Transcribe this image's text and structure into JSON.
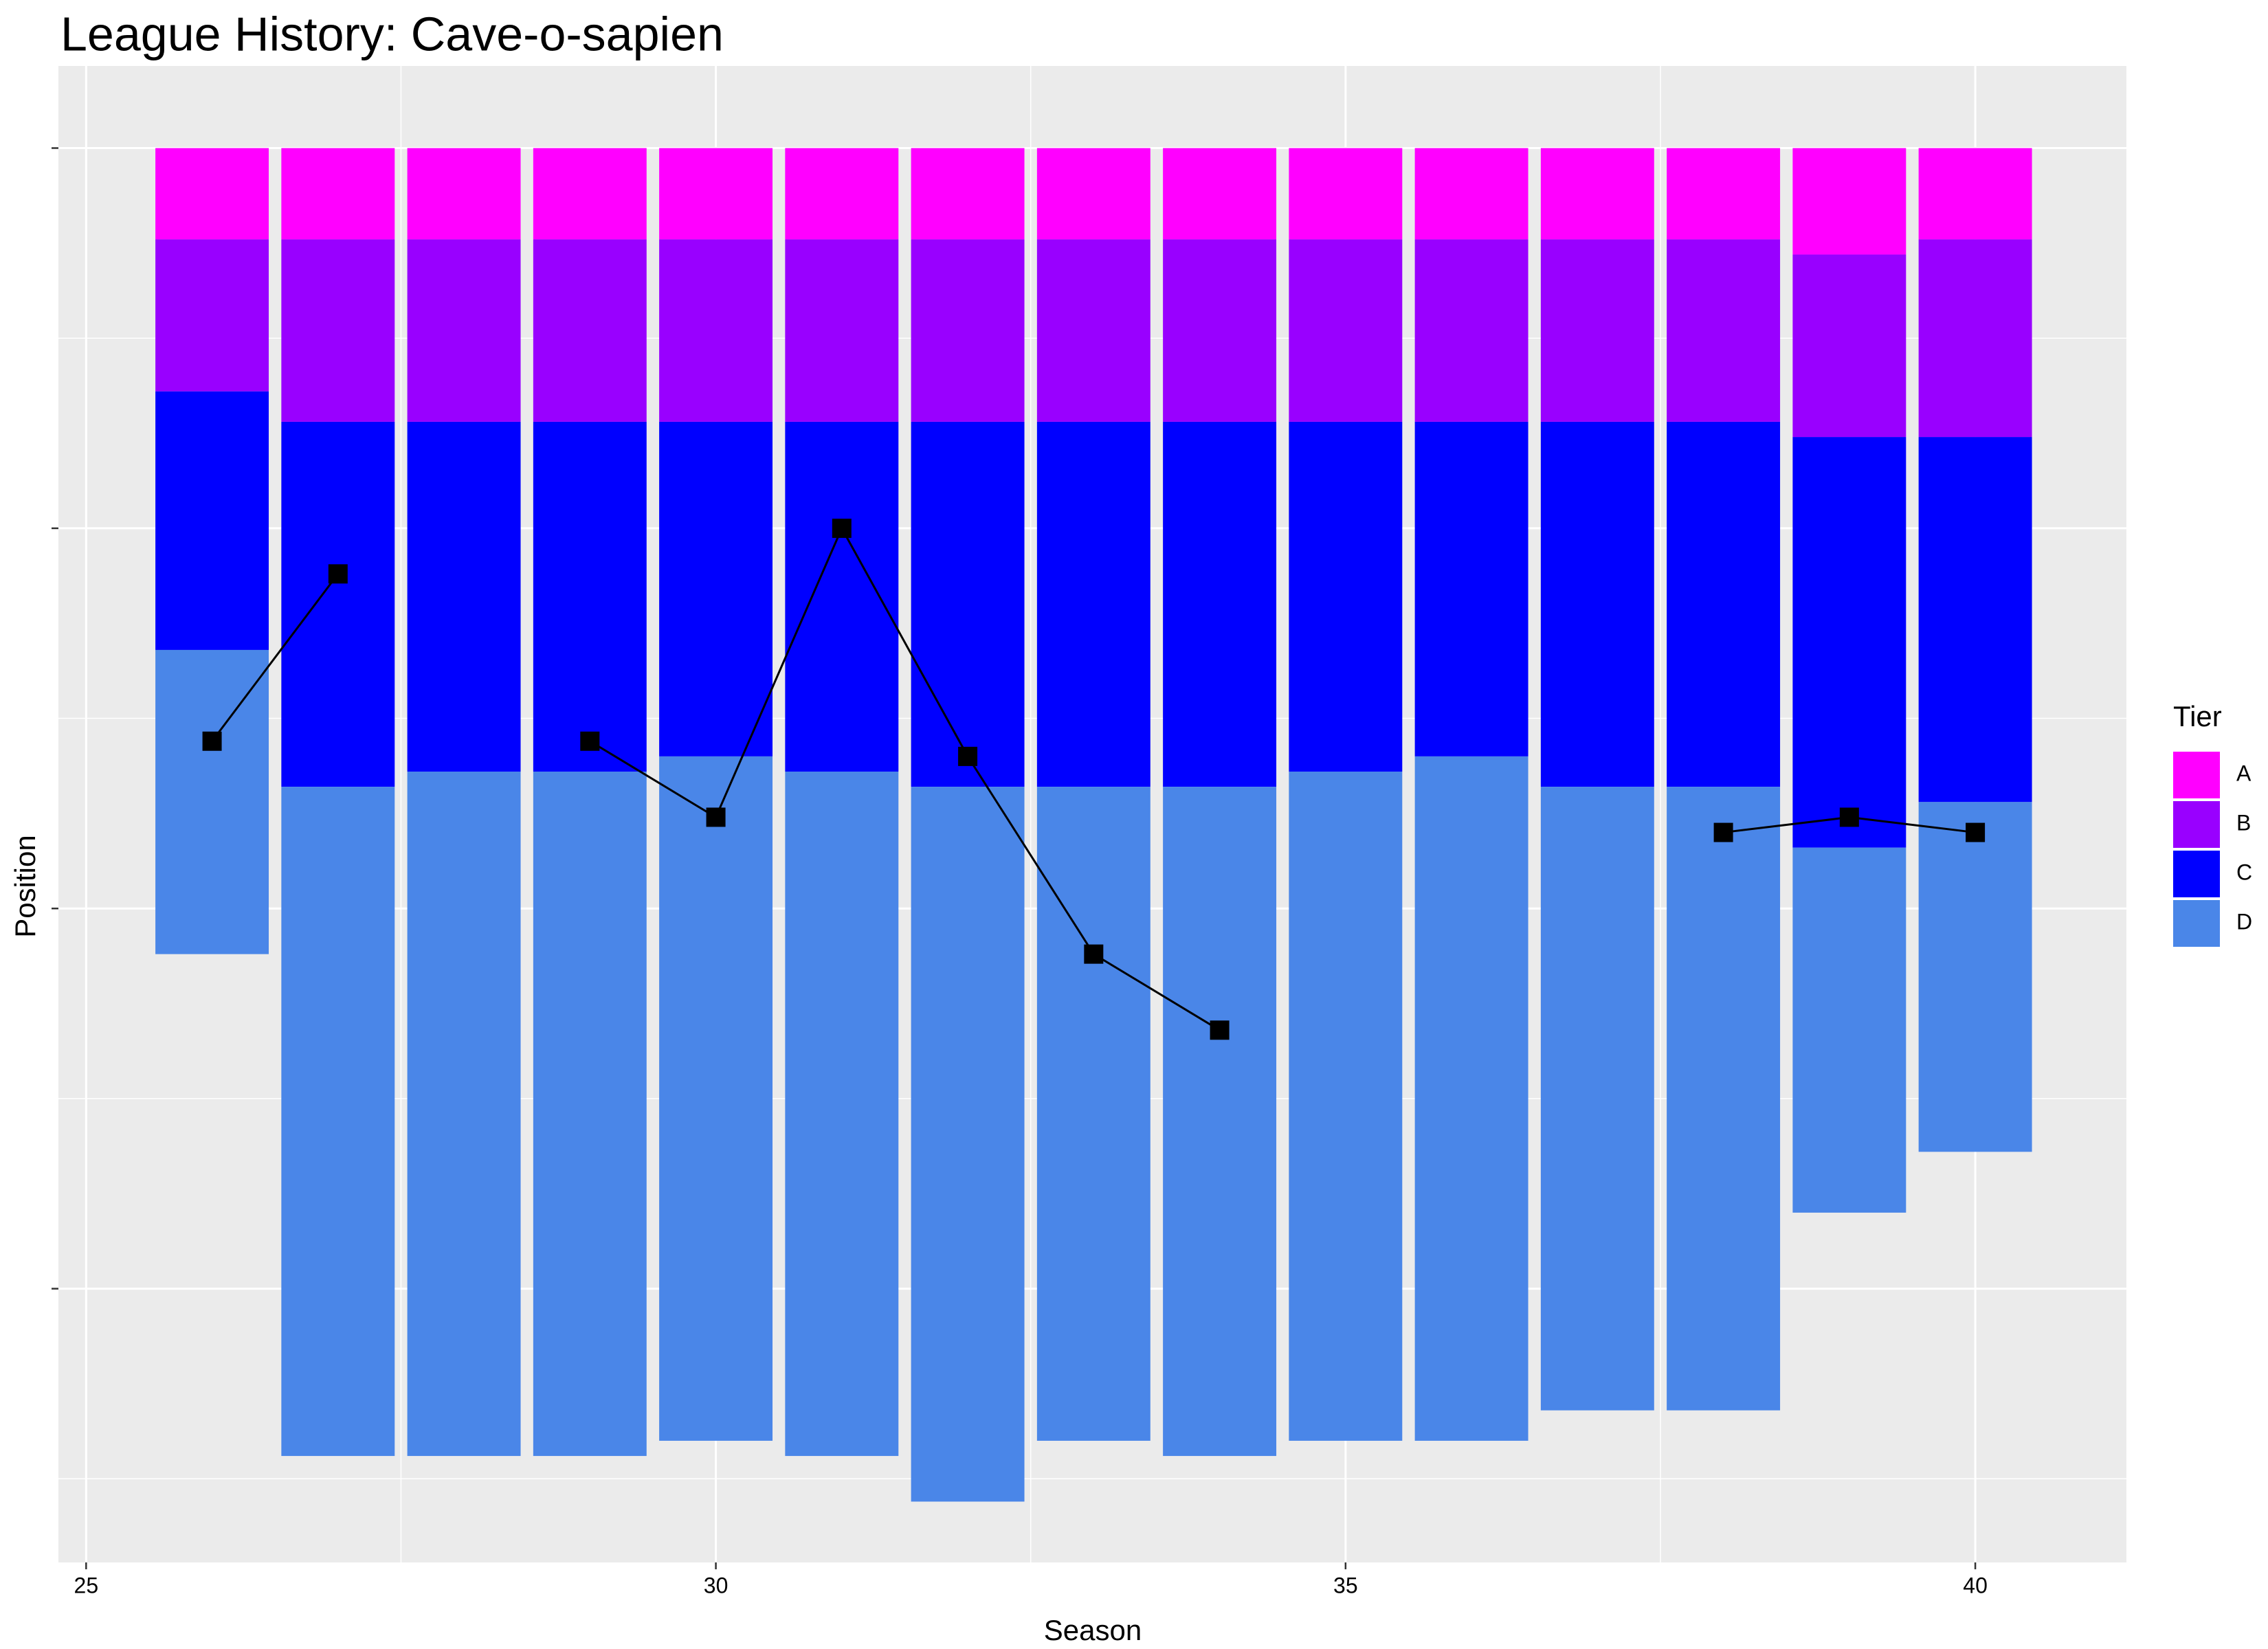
{
  "chart_data": {
    "type": "stacked-bar-line",
    "title": "League History: Cave-o-sapien",
    "x_label": "Season",
    "y_label": "Position",
    "legend_title": "Tier",
    "x": [
      26,
      27,
      28,
      29,
      30,
      31,
      32,
      33,
      34,
      35,
      36,
      37,
      38,
      39,
      40
    ],
    "series": [
      {
        "name": "A",
        "color": "#ff00ff",
        "values": [
          6,
          6,
          6,
          6,
          6,
          6,
          6,
          6,
          6,
          6,
          6,
          6,
          6,
          7,
          6
        ]
      },
      {
        "name": "B",
        "color": "#9900ff",
        "values": [
          10,
          12,
          12,
          12,
          12,
          12,
          12,
          12,
          12,
          12,
          12,
          12,
          12,
          12,
          13
        ]
      },
      {
        "name": "C",
        "color": "#0000ff",
        "values": [
          17,
          24,
          23,
          23,
          22,
          23,
          24,
          24,
          24,
          23,
          22,
          24,
          24,
          27,
          24
        ]
      },
      {
        "name": "D",
        "color": "#4a86e8",
        "values": [
          20,
          44,
          45,
          45,
          45,
          45,
          47,
          43,
          44,
          44,
          45,
          41,
          41,
          24,
          23
        ]
      }
    ],
    "line": {
      "color": "#000000",
      "values": [
        39,
        28,
        null,
        39,
        44,
        25,
        40,
        53,
        58,
        null,
        null,
        null,
        45,
        44,
        45
      ]
    },
    "xlim": [
      24.78,
      41.2
    ],
    "xticks": [
      25,
      30,
      35,
      40
    ],
    "ylim": [
      93,
      -5.4
    ],
    "yticks": [
      0,
      25,
      50,
      75
    ],
    "grid": true,
    "legend_position": "right"
  }
}
